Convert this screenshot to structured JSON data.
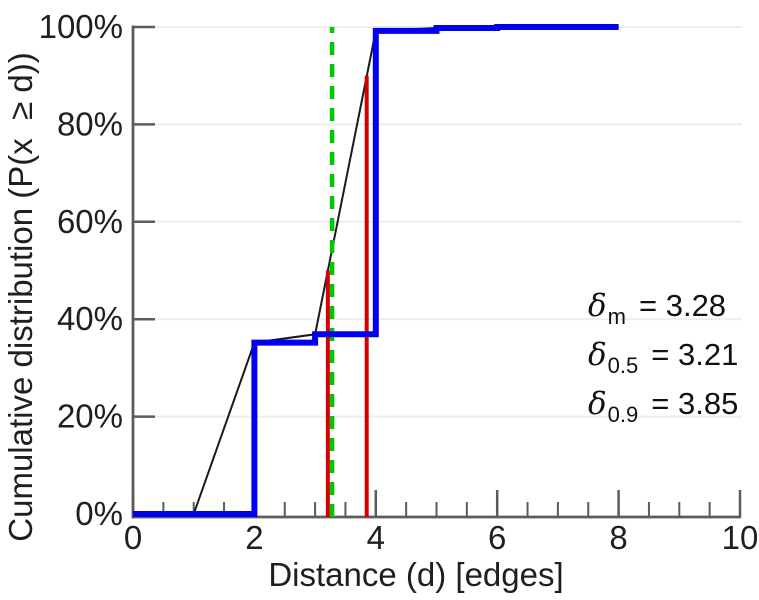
{
  "chart_data": {
    "type": "line",
    "title": "",
    "xlabel": "Distance (d) [edges]",
    "ylabel": "Cumulative distribution (P(x  ≥ d))",
    "x_axis": {
      "min": 0,
      "max": 10,
      "major_ticks": [
        0,
        2,
        4,
        6,
        8,
        10
      ],
      "major_tick_labels": [
        "0",
        "2",
        "4",
        "6",
        "8",
        "10"
      ],
      "minor_tick_step": 0.5
    },
    "y_axis": {
      "min_pct": 0,
      "max_pct": 100,
      "ticks_pct": [
        0,
        20,
        40,
        60,
        80,
        100
      ],
      "tick_labels": [
        "0%",
        "20%",
        "40%",
        "60%",
        "80%",
        "100%"
      ],
      "grid": "horizontal"
    },
    "legend": "none",
    "series": [
      {
        "name": "cdf-step-curve",
        "type": "step",
        "color": "#0101ee",
        "stroke_width": 6,
        "points_x_pct": [
          [
            0,
            0
          ],
          [
            2,
            0
          ],
          [
            2,
            35.2
          ],
          [
            3,
            35.2
          ],
          [
            3,
            36.9
          ],
          [
            4,
            36.9
          ],
          [
            4,
            99.2
          ],
          [
            5,
            99.2
          ],
          [
            5,
            99.8
          ],
          [
            6,
            99.8
          ],
          [
            6,
            100
          ],
          [
            8,
            100
          ]
        ]
      },
      {
        "name": "cdf-linear-interpolation",
        "type": "line",
        "color": "#1a1a1a",
        "stroke_width": 2,
        "points_x_pct": [
          [
            1,
            0
          ],
          [
            2,
            35.2
          ],
          [
            3,
            36.9
          ],
          [
            4,
            99.2
          ],
          [
            5,
            99.8
          ],
          [
            6,
            100
          ],
          [
            8,
            100
          ]
        ]
      }
    ],
    "vlines": [
      {
        "name": "delta-m",
        "x": 3.28,
        "top_pct": 100,
        "color": "#00c800",
        "dashed": true
      },
      {
        "name": "delta-0-5",
        "x": 3.21,
        "top_pct": 50,
        "color": "#d40000",
        "dashed": false
      },
      {
        "name": "delta-0-9",
        "x": 3.85,
        "top_pct": 90,
        "color": "#d40000",
        "dashed": false
      }
    ],
    "annotations": [
      {
        "symbol": "δ",
        "subscript": "m",
        "value": "= 3.28"
      },
      {
        "symbol": "δ",
        "subscript": "0.5",
        "value": "= 3.21"
      },
      {
        "symbol": "δ",
        "subscript": "0.9",
        "value": "= 3.85"
      }
    ]
  },
  "colors": {
    "step_line": "#0101ee",
    "interp_line": "#1a1a1a",
    "mean_line": "#00c800",
    "percentile_line": "#d40000",
    "grid": "#ededed",
    "axis": "#5c5c5c",
    "text": "#1f1f1f",
    "background": "#ffffff"
  }
}
